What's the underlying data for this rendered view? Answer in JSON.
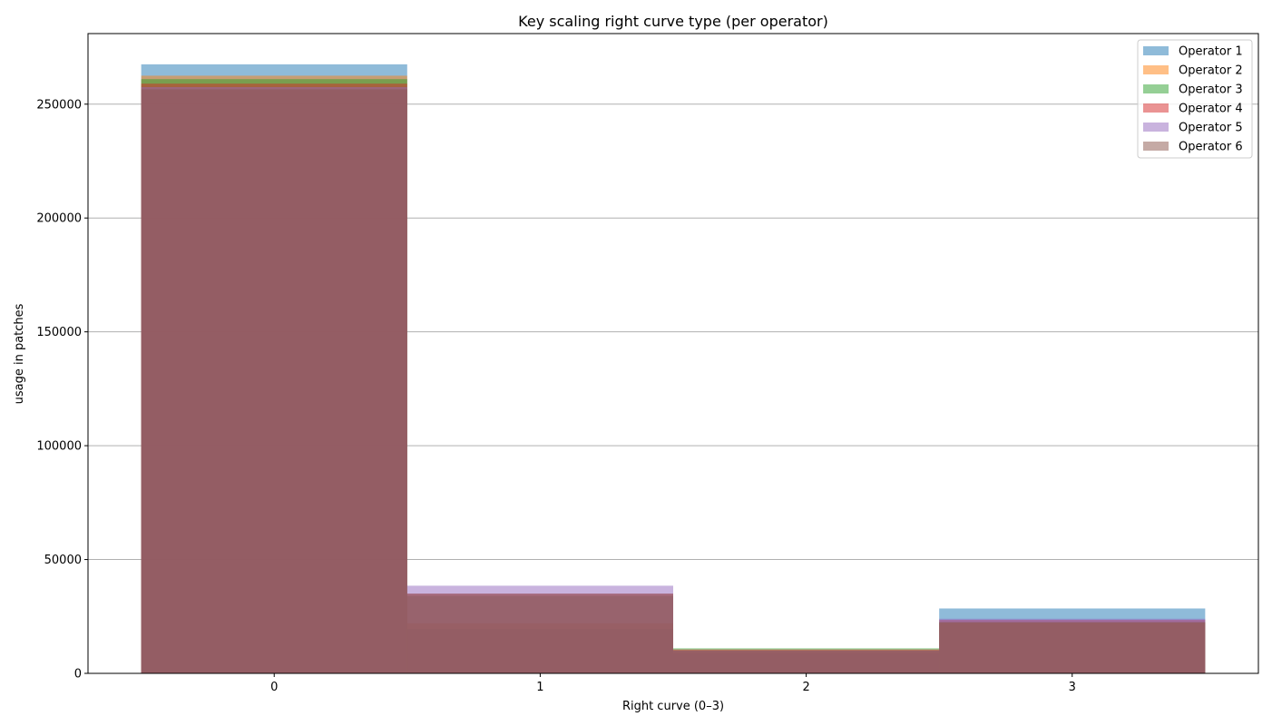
{
  "chart_data": {
    "type": "bar",
    "title": "Key scaling right curve type (per operator)",
    "xlabel": "Right curve (0–3)",
    "ylabel": "usage in patches",
    "categories": [
      "0",
      "1",
      "2",
      "3"
    ],
    "y_ticks": [
      "0",
      "50000",
      "100000",
      "150000",
      "200000",
      "250000"
    ],
    "ylim": [
      0,
      281000
    ],
    "grid": "y",
    "legend_position": "top-right",
    "bar_opacity": 0.5,
    "series": [
      {
        "name": "Operator 1",
        "color": "#1f77b4",
        "values": [
          267500,
          19500,
          9000,
          28500
        ]
      },
      {
        "name": "Operator 2",
        "color": "#ff7f0e",
        "values": [
          262500,
          22000,
          10000,
          22000
        ]
      },
      {
        "name": "Operator 3",
        "color": "#2ca02c",
        "values": [
          261000,
          34000,
          11000,
          22500
        ]
      },
      {
        "name": "Operator 4",
        "color": "#d62728",
        "values": [
          259000,
          35000,
          10500,
          23500
        ]
      },
      {
        "name": "Operator 5",
        "color": "#9467bd",
        "values": [
          257500,
          38500,
          10000,
          24000
        ]
      },
      {
        "name": "Operator 6",
        "color": "#8c564b",
        "values": [
          256500,
          35000,
          10000,
          22500
        ]
      }
    ]
  }
}
